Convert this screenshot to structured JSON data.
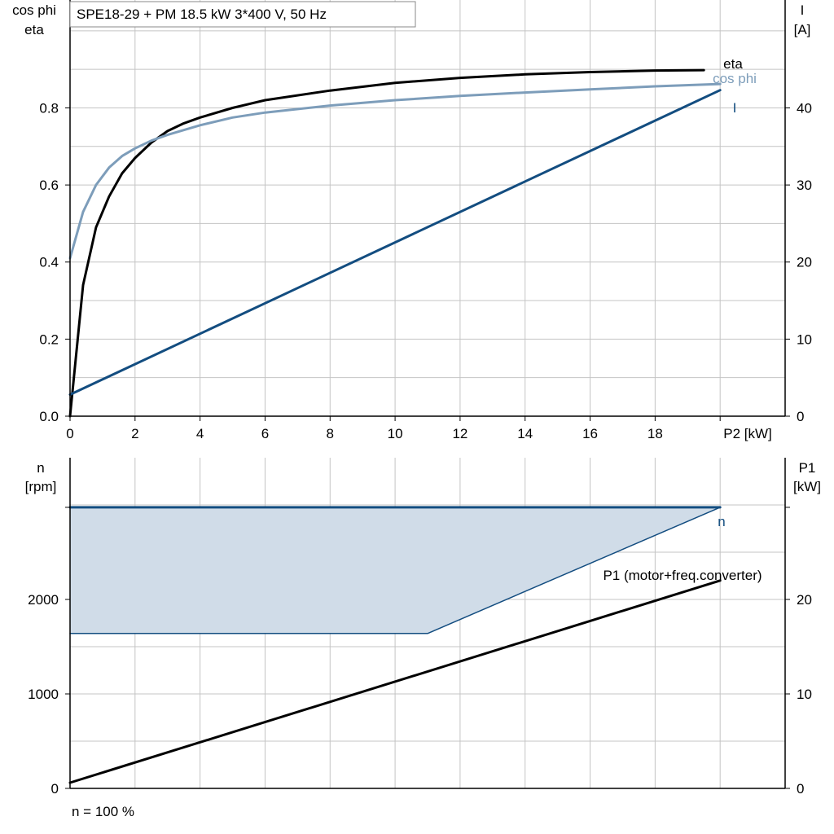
{
  "header": {
    "title": "SPE18-29 + PM   18.5 kW   3*400 V, 50 Hz"
  },
  "chart_data": [
    {
      "type": "line",
      "name": "top",
      "xlabel": "P2 [kW]",
      "ylabel_left": [
        "cos phi",
        "eta"
      ],
      "ylabel_right": [
        "I",
        "[A]"
      ],
      "xlim": [
        0,
        22
      ],
      "ylim_left": [
        0,
        1.08
      ],
      "ylim_right": [
        0,
        54
      ],
      "xticks": [
        0,
        2,
        4,
        6,
        8,
        10,
        12,
        14,
        16,
        18
      ],
      "xtick_labels": [
        "0",
        "2",
        "4",
        "6",
        "8",
        "10",
        "12",
        "14",
        "16",
        "18"
      ],
      "yticks_left": [
        0.0,
        0.2,
        0.4,
        0.6,
        0.8
      ],
      "ytick_labels_left": [
        "0.0",
        "0.2",
        "0.4",
        "0.6",
        "0.8"
      ],
      "yticks_right": [
        0,
        10,
        20,
        30,
        40
      ],
      "ytick_labels_right": [
        "0",
        "10",
        "20",
        "30",
        "40"
      ],
      "grid": true,
      "series": [
        {
          "name": "eta",
          "axis": "left",
          "color": "#000000",
          "x": [
            0,
            0.4,
            0.8,
            1.2,
            1.6,
            2.0,
            2.5,
            3.0,
            3.5,
            4.0,
            5.0,
            6.0,
            8.0,
            10.0,
            12.0,
            14.0,
            16.0,
            18.0,
            19.5
          ],
          "y": [
            0,
            0.34,
            0.49,
            0.57,
            0.63,
            0.67,
            0.71,
            0.74,
            0.76,
            0.775,
            0.8,
            0.82,
            0.845,
            0.865,
            0.878,
            0.887,
            0.893,
            0.897,
            0.898
          ]
        },
        {
          "name": "cos phi",
          "axis": "left",
          "color": "#7d9dba",
          "x": [
            0,
            0.4,
            0.8,
            1.2,
            1.6,
            2.0,
            2.5,
            3.0,
            4.0,
            5.0,
            6.0,
            8.0,
            10.0,
            12.0,
            14.0,
            16.0,
            18.0,
            20.0
          ],
          "y": [
            0.41,
            0.53,
            0.6,
            0.645,
            0.675,
            0.695,
            0.715,
            0.73,
            0.755,
            0.775,
            0.788,
            0.806,
            0.82,
            0.831,
            0.84,
            0.848,
            0.856,
            0.862
          ]
        },
        {
          "name": "I",
          "axis": "right",
          "color": "#134d80",
          "x": [
            0,
            20.0
          ],
          "y": [
            2.8,
            42.3
          ]
        }
      ]
    },
    {
      "type": "area",
      "name": "bottom",
      "ylabel_left": [
        "n",
        "[rpm]"
      ],
      "ylabel_right": [
        "P1",
        "[kW]"
      ],
      "xlim": [
        0,
        22
      ],
      "ylim_left": [
        0,
        3500
      ],
      "ylim_right": [
        0,
        35
      ],
      "yticks_left": [
        0,
        1000,
        2000
      ],
      "ytick_labels_left": [
        "0",
        "1000",
        "2000"
      ],
      "yticks_right": [
        0,
        10,
        20
      ],
      "ytick_labels_right": [
        "0",
        "10",
        "20"
      ],
      "grid": true,
      "footnote": "n = 100 %",
      "series": [
        {
          "name": "n",
          "axis": "left",
          "color": "#134d80",
          "x": [
            0,
            20.0
          ],
          "y": [
            2975,
            2975
          ]
        },
        {
          "name": "n-range-lower",
          "axis": "left",
          "color": "#134d80",
          "x": [
            0,
            11.0,
            20.0
          ],
          "y": [
            1640,
            1640,
            2975
          ]
        },
        {
          "name": "P1 (motor+freq.converter)",
          "axis": "right",
          "color": "#000000",
          "x": [
            0,
            20.0
          ],
          "y": [
            0.6,
            22.0
          ]
        }
      ],
      "fill_color": "#d0dce8"
    }
  ]
}
